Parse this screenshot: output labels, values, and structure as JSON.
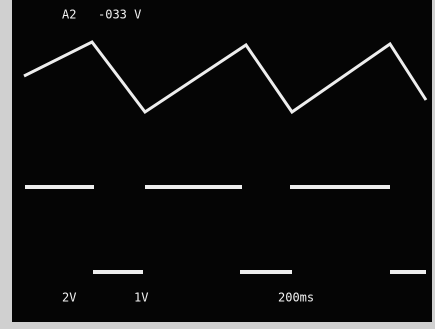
{
  "header": {
    "channel": "A2",
    "offset": "-033 V"
  },
  "footer": {
    "ch1_scale": "2V",
    "ch2_scale": "1V",
    "timebase": "200ms"
  }
}
